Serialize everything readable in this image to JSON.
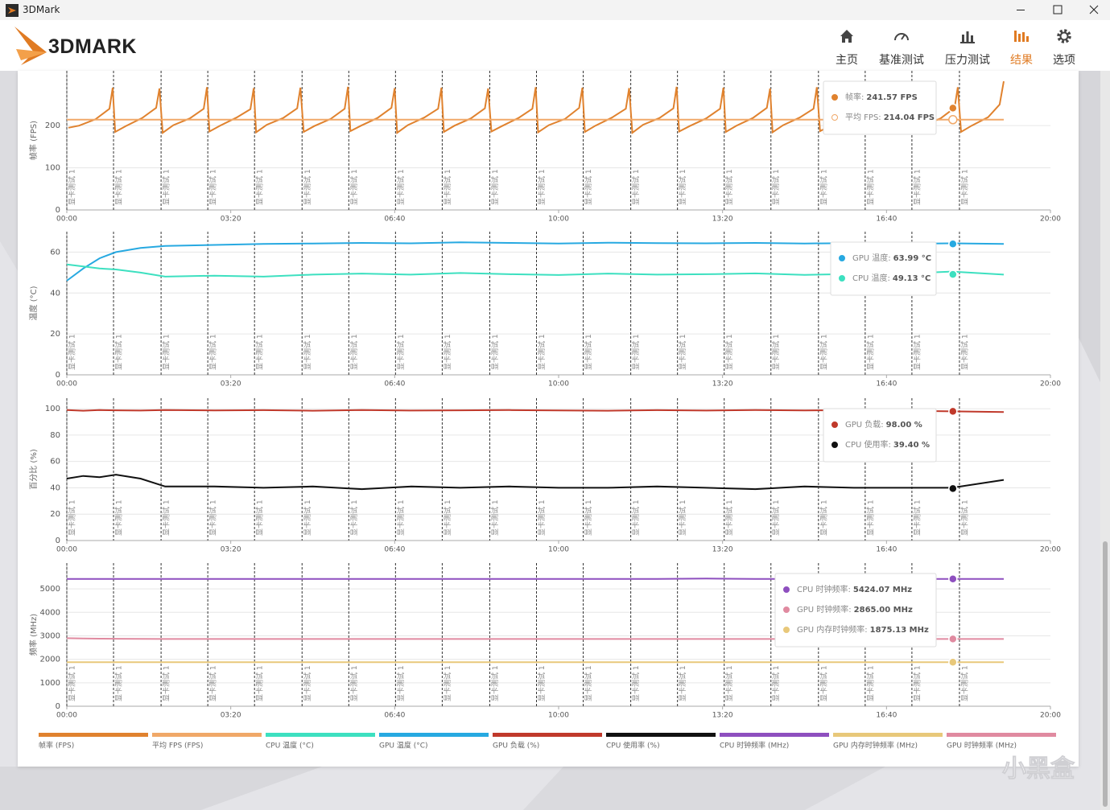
{
  "window": {
    "title": "3DMark"
  },
  "header": {
    "logo": "3DMARK",
    "nav": [
      {
        "label": "主页"
      },
      {
        "label": "基准测试"
      },
      {
        "label": "压力测试"
      },
      {
        "label": "结果",
        "active": true
      },
      {
        "label": "选项"
      }
    ]
  },
  "chart_data": [
    {
      "type": "line",
      "y_label": "帧率 (FPS)",
      "x": [
        2,
        15,
        35,
        52,
        56,
        59,
        72,
        92,
        109,
        113,
        117,
        130,
        150,
        167,
        171,
        174,
        187,
        207,
        224,
        228,
        231,
        244,
        264,
        281,
        285,
        289,
        302,
        322,
        339,
        343,
        346,
        359,
        379,
        396,
        400,
        403,
        416,
        436,
        453,
        457,
        460,
        473,
        493,
        510,
        514,
        518,
        531,
        551,
        568,
        572,
        575,
        588,
        608,
        625,
        629,
        632,
        645,
        665,
        682,
        686,
        690,
        703,
        723,
        740,
        744,
        747,
        760,
        780,
        797,
        801,
        804,
        817,
        837,
        854,
        858,
        861,
        874,
        894,
        911,
        915,
        919,
        932,
        952,
        969,
        973,
        976,
        989,
        1009,
        1026,
        1030,
        1033,
        1046,
        1066,
        1083,
        1087,
        1091,
        1104,
        1124,
        1138,
        1143
      ],
      "xlim": [
        0,
        1200
      ],
      "xticks": [
        {
          "value": 0,
          "label": "00:00"
        },
        {
          "value": 200,
          "label": "03:20"
        },
        {
          "value": 400,
          "label": "06:40"
        },
        {
          "value": 600,
          "label": "10:00"
        },
        {
          "value": 800,
          "label": "13:20"
        },
        {
          "value": 1000,
          "label": "16:40"
        },
        {
          "value": 1200,
          "label": "20:00"
        }
      ],
      "ylim": [
        0,
        330
      ],
      "yticks": [
        0,
        100,
        200
      ],
      "grid": true,
      "markers": {
        "x": [
          0,
          57,
          115,
          172,
          229,
          287,
          344,
          401,
          458,
          516,
          573,
          630,
          688,
          745,
          802,
          859,
          917,
          974,
          1031,
          1089
        ],
        "label": "显卡测试 1"
      },
      "cursor_x": 1081,
      "series": [
        {
          "name": "帧率 (FPS)",
          "color": "#e0822e",
          "values": [
            195,
            200,
            215,
            240,
            290,
            185,
            199,
            218,
            242,
            288,
            183,
            201,
            217,
            240,
            291,
            186,
            200,
            219,
            239,
            289,
            184,
            202,
            218,
            241,
            290,
            185,
            199,
            216,
            240,
            292,
            187,
            200,
            218,
            242,
            289,
            183,
            201,
            219,
            240,
            290,
            185,
            200,
            217,
            241,
            288,
            186,
            199,
            218,
            240,
            291,
            184,
            201,
            216,
            242,
            290,
            185,
            200,
            219,
            240,
            289,
            183,
            202,
            218,
            241,
            292,
            186,
            199,
            217,
            240,
            290,
            185,
            200,
            218,
            242,
            288,
            184,
            201,
            219,
            240,
            291,
            187,
            200,
            216,
            241,
            290,
            185,
            199,
            218,
            240,
            289,
            183,
            201,
            217,
            242,
            291,
            185,
            200,
            220,
            250,
            305
          ],
          "tooltip_label": "帧率:",
          "tooltip_value": 241.57,
          "tooltip_value_label": "241.57 FPS",
          "tooltip_marker": "filled"
        },
        {
          "name": "平均 FPS (FPS)",
          "color": "#f0a868",
          "x": [
            0,
            1143
          ],
          "values": [
            214.04,
            214.04
          ],
          "tooltip_label": "平均 FPS:",
          "tooltip_value": 214.04,
          "tooltip_value_label": "214.04 FPS",
          "tooltip_marker": "hollow"
        }
      ]
    },
    {
      "type": "line",
      "y_label": "温度 (°C)",
      "x": [
        0,
        20,
        40,
        60,
        90,
        120,
        180,
        240,
        300,
        360,
        420,
        480,
        540,
        600,
        660,
        720,
        780,
        840,
        900,
        960,
        1020,
        1080,
        1143
      ],
      "xlim": [
        0,
        1200
      ],
      "xticks": [
        {
          "value": 0,
          "label": "00:00"
        },
        {
          "value": 200,
          "label": "03:20"
        },
        {
          "value": 400,
          "label": "06:40"
        },
        {
          "value": 600,
          "label": "10:00"
        },
        {
          "value": 800,
          "label": "13:20"
        },
        {
          "value": 1000,
          "label": "16:40"
        },
        {
          "value": 1200,
          "label": "20:00"
        }
      ],
      "ylim": [
        0,
        70
      ],
      "yticks": [
        0,
        20,
        40,
        60
      ],
      "grid": true,
      "markers": {
        "x": [
          0,
          57,
          115,
          172,
          229,
          287,
          344,
          401,
          458,
          516,
          573,
          630,
          688,
          745,
          802,
          859,
          917,
          974,
          1031,
          1089
        ],
        "label": "显卡测试 1"
      },
      "cursor_x": 1081,
      "series": [
        {
          "name": "GPU 温度 (°C)",
          "color": "#27a9e1",
          "values": [
            46,
            52,
            57,
            60,
            62,
            63,
            63.5,
            64,
            64.2,
            64.5,
            64.3,
            64.8,
            64.5,
            64.2,
            64.6,
            64.4,
            64.3,
            64.5,
            64.2,
            64.4,
            64.1,
            64.3,
            64
          ],
          "tooltip_label": "GPU 温度:",
          "tooltip_value": 63.99,
          "tooltip_value_label": "63.99 °C",
          "tooltip_marker": "filled"
        },
        {
          "name": "CPU 温度 (°C)",
          "color": "#3de0c0",
          "values": [
            54,
            53,
            52,
            51.5,
            50,
            48,
            48.5,
            48,
            49,
            49.5,
            49,
            49.8,
            49.2,
            48.8,
            49.5,
            49,
            49.2,
            49.6,
            48.9,
            49.3,
            49.5,
            50.5,
            49
          ],
          "tooltip_label": "CPU 温度:",
          "tooltip_value": 49.13,
          "tooltip_value_label": "49.13 °C",
          "tooltip_marker": "filled"
        }
      ]
    },
    {
      "type": "line",
      "y_label": "百分比 (%)",
      "x": [
        0,
        20,
        40,
        60,
        90,
        120,
        180,
        240,
        300,
        360,
        420,
        480,
        540,
        600,
        660,
        720,
        780,
        840,
        900,
        960,
        1020,
        1080,
        1143
      ],
      "xlim": [
        0,
        1200
      ],
      "xticks": [
        {
          "value": 0,
          "label": "00:00"
        },
        {
          "value": 200,
          "label": "03:20"
        },
        {
          "value": 400,
          "label": "06:40"
        },
        {
          "value": 600,
          "label": "10:00"
        },
        {
          "value": 800,
          "label": "13:20"
        },
        {
          "value": 1000,
          "label": "16:40"
        },
        {
          "value": 1200,
          "label": "20:00"
        }
      ],
      "ylim": [
        0,
        108
      ],
      "yticks": [
        0,
        20,
        40,
        60,
        80,
        100
      ],
      "grid": true,
      "markers": {
        "x": [
          0,
          57,
          115,
          172,
          229,
          287,
          344,
          401,
          458,
          516,
          573,
          630,
          688,
          745,
          802,
          859,
          917,
          974,
          1031,
          1089
        ],
        "label": "显卡测试 1"
      },
      "cursor_x": 1081,
      "series": [
        {
          "name": "GPU 负载 (%)",
          "color": "#c0392b",
          "values": [
            99,
            98.5,
            99,
            98.8,
            98.6,
            99,
            98.7,
            98.9,
            98.5,
            99,
            98.6,
            98.8,
            99,
            98.7,
            98.5,
            98.9,
            98.6,
            99,
            98.7,
            98.8,
            98.5,
            98,
            97.5
          ],
          "tooltip_label": "GPU 负载:",
          "tooltip_value": 98,
          "tooltip_value_label": "98.00 %",
          "tooltip_marker": "filled"
        },
        {
          "name": "CPU 使用率 (%)",
          "color": "#111111",
          "values": [
            47,
            49,
            48,
            50,
            47,
            41,
            41,
            40,
            41,
            39,
            41,
            40,
            41,
            40,
            40,
            41,
            40,
            39,
            41,
            40,
            40,
            40,
            46
          ],
          "tooltip_label": "CPU 使用率:",
          "tooltip_value": 39.4,
          "tooltip_value_label": "39.40 %",
          "tooltip_marker": "filled"
        }
      ]
    },
    {
      "type": "line",
      "y_label": "频率 (MHz)",
      "x": [
        0,
        20,
        40,
        60,
        90,
        120,
        180,
        240,
        300,
        360,
        420,
        480,
        540,
        600,
        660,
        720,
        780,
        840,
        900,
        960,
        1020,
        1080,
        1143
      ],
      "xlim": [
        0,
        1200
      ],
      "xticks": [
        {
          "value": 0,
          "label": "00:00"
        },
        {
          "value": 200,
          "label": "03:20"
        },
        {
          "value": 400,
          "label": "06:40"
        },
        {
          "value": 600,
          "label": "10:00"
        },
        {
          "value": 800,
          "label": "13:20"
        },
        {
          "value": 1000,
          "label": "16:40"
        },
        {
          "value": 1200,
          "label": "20:00"
        }
      ],
      "ylim": [
        0,
        6100
      ],
      "yticks": [
        0,
        1000,
        2000,
        3000,
        4000,
        5000
      ],
      "grid": true,
      "markers": {
        "x": [
          0,
          57,
          115,
          172,
          229,
          287,
          344,
          401,
          458,
          516,
          573,
          630,
          688,
          745,
          802,
          859,
          917,
          974,
          1031,
          1089
        ],
        "label": "显卡测试 1"
      },
      "cursor_x": 1081,
      "series": [
        {
          "name": "CPU 时钟频率 (MHz)",
          "color": "#8e4fbf",
          "values": [
            5420,
            5424,
            5424,
            5424,
            5424,
            5424,
            5424,
            5424,
            5424,
            5424,
            5424,
            5424,
            5424,
            5424,
            5424,
            5424,
            5440,
            5424,
            5424,
            5424,
            5424,
            5424,
            5424
          ],
          "tooltip_label": "CPU 时钟频率:",
          "tooltip_value": 5424.07,
          "tooltip_value_label": "5424.07 MHz",
          "tooltip_marker": "filled"
        },
        {
          "name": "GPU 时钟频率 (MHz)",
          "color": "#e08aa0",
          "values": [
            2900,
            2890,
            2880,
            2875,
            2870,
            2865,
            2865,
            2865,
            2865,
            2865,
            2865,
            2865,
            2865,
            2865,
            2865,
            2865,
            2865,
            2865,
            2865,
            2865,
            2865,
            2865,
            2865
          ],
          "tooltip_label": "GPU 时钟频率:",
          "tooltip_value": 2865,
          "tooltip_value_label": "2865.00 MHz",
          "tooltip_marker": "filled"
        },
        {
          "name": "GPU 内存时钟频率 (MHz)",
          "color": "#e8c87a",
          "values": [
            1875.13,
            1875.13,
            1875.13,
            1875.13,
            1875.13,
            1875.13,
            1875.13,
            1875.13,
            1875.13,
            1875.13,
            1875.13,
            1875.13,
            1875.13,
            1875.13,
            1875.13,
            1875.13,
            1875.13,
            1875.13,
            1875.13,
            1875.13,
            1875.13,
            1875.13,
            1875.13
          ],
          "tooltip_label": "GPU 内存时钟频率:",
          "tooltip_value": 1875.13,
          "tooltip_value_label": "1875.13 MHz",
          "tooltip_marker": "filled"
        }
      ]
    }
  ],
  "watermark": "小黑盒"
}
